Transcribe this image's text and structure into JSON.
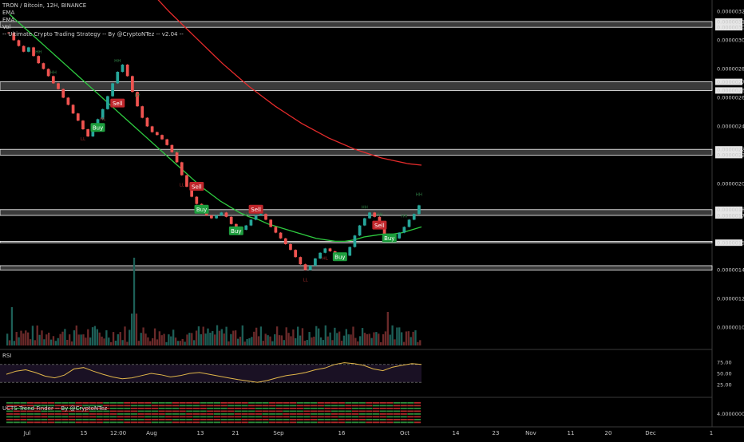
{
  "header": {
    "symbol_line": "TRON / Bitcoin, 12H, BINANCE",
    "indicator_1": "EMA",
    "indicator_2": "EMA",
    "indicator_3": "Vol",
    "strategy": "-- Ultimate Crypto Trading Strategy -- By @CryptoNTez -- v2.04 --"
  },
  "colors": {
    "background": "#000000",
    "bull_candle": "#26a69a",
    "bear_candle": "#ef5350",
    "ema_fast": "#2ecc40",
    "ema_slow": "#e52b2b",
    "sr_zone": "#ffffff",
    "buy_label": "#1e9e3e",
    "sell_label": "#c0262b",
    "rsi_line": "#e0b64a",
    "rsi_band": "#3a2650"
  },
  "price_axis": {
    "ticks": [
      "0.00000320",
      "0.00000300",
      "0.00000280",
      "0.00000260",
      "0.00000240",
      "0.00000220",
      "0.00000200",
      "0.00000182",
      "0.00000178",
      "0.00000159",
      "0.00000140",
      "0.00000120",
      "0.00000100"
    ],
    "highlight_labels": [
      "0.00000313",
      "0.00000309",
      "0.00000271",
      "0.00000265",
      "0.00000224",
      "0.00000220",
      "0.00000182",
      "0.00000178",
      "0.00000159"
    ]
  },
  "time_axis": {
    "labels": [
      "Jul",
      "15",
      "12:00",
      "Aug",
      "13",
      "21",
      "Sep",
      "16",
      "Oct",
      "14",
      "23",
      "Nov",
      "11",
      "20",
      "Dec",
      "1"
    ]
  },
  "rsi_panel": {
    "title": "RSI",
    "ticks": [
      "75.00",
      "50.00",
      "25.00"
    ]
  },
  "trend_panel": {
    "title": "UCTS Trend Finder -- By @CryptoNTez",
    "tick": "4.00000000"
  },
  "chart_data": {
    "type": "candlestick",
    "title": "TRON / Bitcoin, 12H, BINANCE",
    "y_range": [
      8.8e-07,
      3.28e-06
    ],
    "sr_zones": [
      [
        3.09e-06,
        3.13e-06
      ],
      [
        2.65e-06,
        2.71e-06
      ],
      [
        2.2e-06,
        2.24e-06
      ],
      [
        1.78e-06,
        1.82e-06
      ],
      [
        1.59e-06,
        1.6e-06
      ],
      [
        1.4e-06,
        1.43e-06
      ]
    ],
    "close_series": [
      3.05e-06,
      3e-06,
      2.96e-06,
      2.92e-06,
      2.95e-06,
      2.89e-06,
      2.84e-06,
      2.8e-06,
      2.75e-06,
      2.7e-06,
      2.66e-06,
      2.6e-06,
      2.55e-06,
      2.49e-06,
      2.44e-06,
      2.38e-06,
      2.33e-06,
      2.38e-06,
      2.45e-06,
      2.52e-06,
      2.61e-06,
      2.7e-06,
      2.78e-06,
      2.83e-06,
      2.75e-06,
      2.64e-06,
      2.54e-06,
      2.46e-06,
      2.4e-06,
      2.36e-06,
      2.34e-06,
      2.31e-06,
      2.27e-06,
      2.22e-06,
      2.15e-06,
      2.06e-06,
      1.98e-06,
      1.91e-06,
      1.86e-06,
      1.81e-06,
      1.78e-06,
      1.76e-06,
      1.78e-06,
      1.8e-06,
      1.77e-06,
      1.72e-06,
      1.69e-06,
      1.68e-06,
      1.71e-06,
      1.75e-06,
      1.78e-06,
      1.79e-06,
      1.75e-06,
      1.7e-06,
      1.66e-06,
      1.62e-06,
      1.58e-06,
      1.54e-06,
      1.49e-06,
      1.44e-06,
      1.4e-06,
      1.43e-06,
      1.48e-06,
      1.52e-06,
      1.55e-06,
      1.53e-06,
      1.49e-06,
      1.47e-06,
      1.5e-06,
      1.56e-06,
      1.64e-06,
      1.71e-06,
      1.76e-06,
      1.8e-06,
      1.77e-06,
      1.71e-06,
      1.65e-06,
      1.6e-06,
      1.62e-06,
      1.66e-06,
      1.7e-06,
      1.75e-06,
      1.79e-06,
      1.85e-06
    ],
    "ema_fast": [
      3.18e-06,
      3.12e-06,
      3.06e-06,
      3e-06,
      2.94e-06,
      2.88e-06,
      2.82e-06,
      2.76e-06,
      2.7e-06,
      2.64e-06,
      2.58e-06,
      2.52e-06,
      2.46e-06,
      2.4e-06,
      2.34e-06,
      2.28e-06,
      2.22e-06,
      2.16e-06,
      2.1e-06,
      2.04e-06,
      1.98e-06,
      1.93e-06,
      1.88e-06,
      1.84e-06,
      1.8e-06,
      1.77e-06,
      1.75e-06,
      1.72e-06,
      1.7e-06,
      1.68e-06,
      1.66e-06,
      1.64e-06,
      1.62e-06,
      1.61e-06,
      1.6e-06,
      1.6e-06,
      1.61e-06,
      1.63e-06,
      1.64e-06,
      1.65e-06,
      1.65e-06,
      1.66e-06,
      1.68e-06,
      1.7e-06
    ],
    "ema_slow": [
      3.3e-06,
      3.2e-06,
      3.11e-06,
      3.02e-06,
      2.93e-06,
      2.84e-06,
      2.76e-06,
      2.68e-06,
      2.61e-06,
      2.54e-06,
      2.48e-06,
      2.42e-06,
      2.37e-06,
      2.32e-06,
      2.28e-06,
      2.24e-06,
      2.21e-06,
      2.18e-06,
      2.16e-06,
      2.14e-06,
      2.13e-06
    ],
    "signals": [
      {
        "label": "Buy",
        "i": 18,
        "value": 2.39e-06
      },
      {
        "label": "Sell",
        "i": 22,
        "value": 2.56e-06
      },
      {
        "label": "Sell",
        "i": 38,
        "value": 1.98e-06
      },
      {
        "label": "Buy",
        "i": 39,
        "value": 1.82e-06
      },
      {
        "label": "Buy",
        "i": 46,
        "value": 1.67e-06
      },
      {
        "label": "Sell",
        "i": 50,
        "value": 1.82e-06
      },
      {
        "label": "Buy",
        "i": 67,
        "value": 1.49e-06
      },
      {
        "label": "Sell",
        "i": 75,
        "value": 1.71e-06
      },
      {
        "label": "Buy",
        "i": 77,
        "value": 1.62e-06
      }
    ],
    "hh_hl_labels": [
      "HH",
      "HH",
      "HH",
      "LL",
      "LH",
      "HL",
      "LL",
      "HH",
      "LH",
      "LL",
      "HH",
      "HH",
      "HL",
      "HH",
      "HH"
    ],
    "rsi": [
      48,
      55,
      58,
      52,
      44,
      40,
      46,
      60,
      63,
      55,
      48,
      42,
      38,
      40,
      45,
      50,
      47,
      42,
      45,
      50,
      52,
      48,
      44,
      40,
      36,
      33,
      30,
      34,
      40,
      45,
      48,
      52,
      58,
      62,
      70,
      74,
      72,
      68,
      60,
      56,
      64,
      68,
      72,
      70
    ]
  }
}
